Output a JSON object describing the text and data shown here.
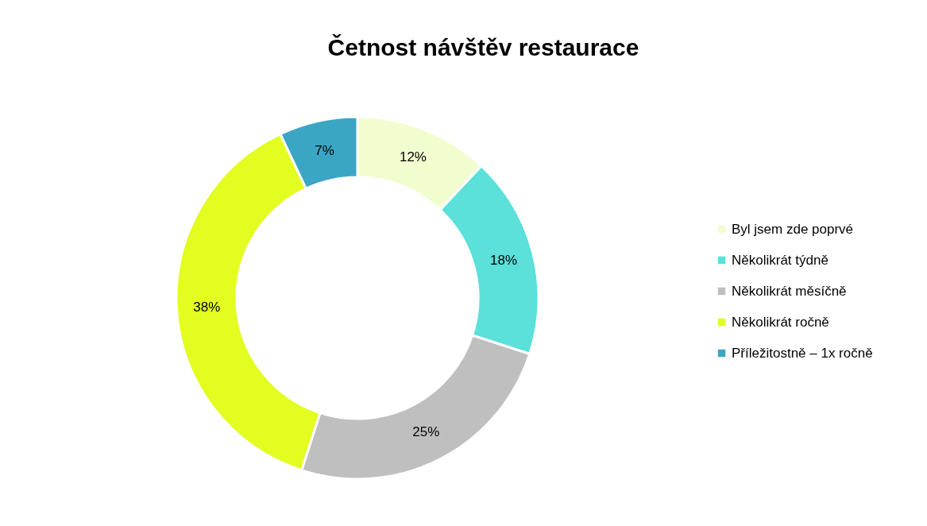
{
  "chart_data": {
    "type": "donut",
    "title": "Četnost návštěv restaurace",
    "categories": [
      "Byl jsem zde poprvé",
      "Několikrát týdně",
      "Několikrát měsíčně",
      "Několikrát ročně",
      "Příležitostně – 1x ročně"
    ],
    "values": [
      12,
      18,
      25,
      38,
      7
    ],
    "value_labels": [
      "12%",
      "18%",
      "25%",
      "38%",
      "7%"
    ],
    "colors": [
      "#f2fdcf",
      "#5be0da",
      "#bfbfbf",
      "#e2fd1f",
      "#3ba6c4"
    ],
    "legend": "right"
  }
}
